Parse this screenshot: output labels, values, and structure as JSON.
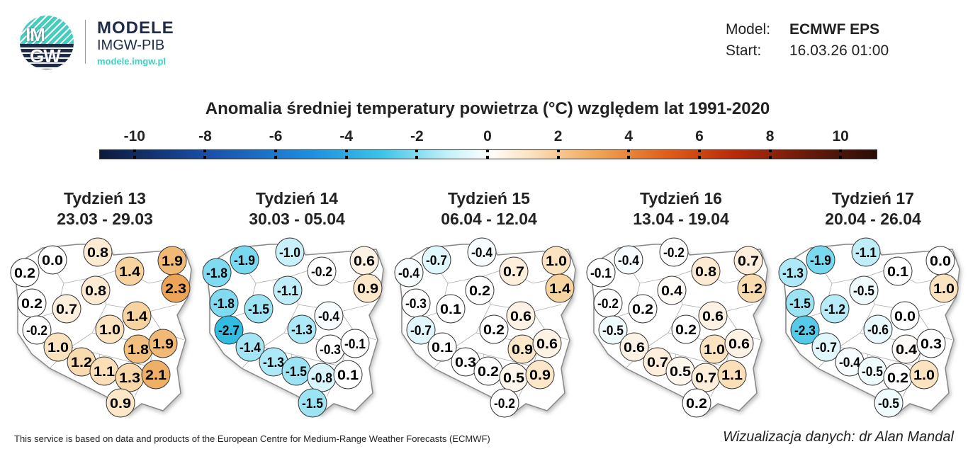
{
  "logo": {
    "circle_top": "IM",
    "circle_bottom": "GW",
    "name": "MODELE",
    "org": "IMGW-PIB",
    "url": "modele.imgw.pl",
    "colors": {
      "teal": "#3fd0c0",
      "navy": "#1d2b48"
    }
  },
  "info": {
    "model_label": "Model:",
    "model_value": "ECMWF EPS",
    "start_label": "Start:",
    "start_value": "16.03.26 01:00"
  },
  "chart_data": {
    "type": "map-bubble",
    "title": "Anomalia średniej temperatury powietrza (°C) względem lat 1991-2020",
    "colorbar": {
      "ticks": [
        -10,
        -8,
        -6,
        -4,
        -2,
        0,
        2,
        4,
        6,
        8,
        10
      ],
      "range": [
        -11,
        11
      ]
    },
    "maps": [
      {
        "week": "Tydzień 13",
        "dates": "23.03 - 29.03",
        "values": [
          0.2,
          0.0,
          0.8,
          1.4,
          1.9,
          2.3,
          0.8,
          0.2,
          0.7,
          -0.2,
          1.0,
          1.4,
          1.0,
          1.2,
          1.1,
          1.3,
          1.8,
          1.9,
          2.1,
          0.9
        ]
      },
      {
        "week": "Tydzień 14",
        "dates": "30.03 - 05.04",
        "values": [
          -1.8,
          -1.9,
          -1.0,
          -0.2,
          0.6,
          0.9,
          -1.1,
          -1.8,
          -1.5,
          -2.7,
          -1.3,
          -0.4,
          -1.4,
          -1.3,
          -1.5,
          -0.8,
          -0.3,
          -0.1,
          0.1,
          -1.5
        ]
      },
      {
        "week": "Tydzień 15",
        "dates": "06.04 - 12.04",
        "values": [
          -0.4,
          -0.7,
          -0.4,
          0.7,
          1.0,
          1.4,
          0.2,
          -0.3,
          0.1,
          -0.7,
          0.2,
          0.6,
          0.1,
          0.3,
          0.2,
          0.5,
          0.9,
          0.6,
          0.9,
          -0.2
        ]
      },
      {
        "week": "Tydzień 16",
        "dates": "13.04 - 19.04",
        "values": [
          -0.1,
          -0.4,
          -0.2,
          0.8,
          0.7,
          1.2,
          0.4,
          -0.2,
          0.2,
          -0.5,
          0.2,
          0.6,
          0.6,
          0.7,
          0.5,
          0.7,
          1.0,
          0.6,
          1.1,
          0.2
        ]
      },
      {
        "week": "Tydzień 17",
        "dates": "20.04 - 26.04",
        "values": [
          -1.3,
          -1.9,
          -1.1,
          0.1,
          0.0,
          1.0,
          -0.5,
          -1.5,
          -1.2,
          -2.3,
          -0.6,
          0.0,
          -0.7,
          -0.4,
          -0.5,
          0.2,
          0.4,
          0.3,
          1.0,
          -0.5
        ]
      }
    ]
  },
  "footer": {
    "source": "This service is based on data and products of the European Centre for Medium-Range Weather Forecasts (ECMWF)",
    "credit": "Wizualizacja danych: dr Alan Mandal"
  }
}
